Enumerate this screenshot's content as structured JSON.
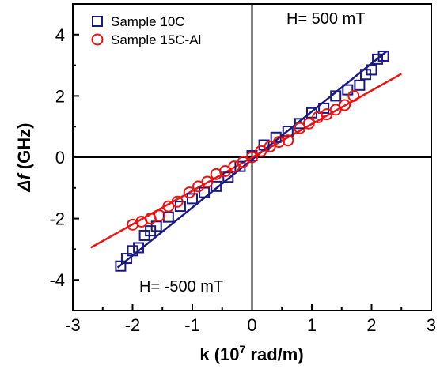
{
  "chart_data": {
    "type": "scatter",
    "xlabel_main": "k (10",
    "xlabel_sup": "7",
    "xlabel_end": " rad/m)",
    "ylabel_delta": "Δ",
    "ylabel_f": "f",
    "ylabel_unit": " (GHz)",
    "xlim": [
      -3,
      3
    ],
    "ylim": [
      -5,
      5
    ],
    "xticks": [
      -3,
      -2,
      -1,
      0,
      1,
      2,
      3
    ],
    "yticks": [
      -4,
      -2,
      0,
      2,
      4
    ],
    "xtick_labels": [
      "-3",
      "-2",
      "-1",
      "0",
      "1",
      "2",
      "3"
    ],
    "ytick_labels": [
      "-4",
      "-2",
      "0",
      "2",
      "4"
    ],
    "legend_position": "top-left",
    "annotations": {
      "top_right": "H= 500 mT",
      "bottom_left": "H= -500 mT"
    },
    "series": [
      {
        "name": "Sample 10C",
        "marker": "square",
        "color": "#1a1a80",
        "x": [
          -2.2,
          -2.1,
          -2.0,
          -1.9,
          -1.8,
          -1.7,
          -1.6,
          -1.4,
          -1.2,
          -1.0,
          -0.8,
          -0.6,
          -0.4,
          -0.2,
          0.0,
          0.2,
          0.4,
          0.6,
          0.8,
          1.0,
          1.2,
          1.4,
          1.6,
          1.8,
          1.9,
          2.0,
          2.1,
          2.2
        ],
        "y": [
          -3.55,
          -3.3,
          -3.05,
          -2.95,
          -2.55,
          -2.4,
          -2.25,
          -1.95,
          -1.6,
          -1.35,
          -1.15,
          -0.95,
          -0.65,
          -0.3,
          0.05,
          0.4,
          0.65,
          0.85,
          1.1,
          1.45,
          1.6,
          2.0,
          2.2,
          2.35,
          2.7,
          2.85,
          3.2,
          3.3
        ]
      },
      {
        "name": "Sample 15C-Al",
        "marker": "circle",
        "color": "#ee1111",
        "x": [
          -2.0,
          -1.85,
          -1.7,
          -1.55,
          -1.4,
          -1.25,
          -1.05,
          -0.9,
          -0.75,
          -0.6,
          -0.45,
          -0.3,
          -0.15,
          0.0,
          0.15,
          0.3,
          0.45,
          0.6,
          0.8,
          0.95,
          1.1,
          1.25,
          1.4,
          1.55,
          1.7
        ],
        "y": [
          -2.2,
          -2.1,
          -2.0,
          -1.9,
          -1.6,
          -1.45,
          -1.15,
          -0.95,
          -0.8,
          -0.55,
          -0.45,
          -0.3,
          -0.15,
          0.0,
          0.2,
          0.35,
          0.5,
          0.55,
          0.95,
          1.1,
          1.3,
          1.4,
          1.55,
          1.7,
          2.0
        ]
      }
    ],
    "fit_lines": [
      {
        "series": "Sample 10C",
        "color": "#1a1a80",
        "x": [
          -2.25,
          2.25
        ],
        "y": [
          -3.6,
          3.45
        ]
      },
      {
        "series": "Sample 15C-Al",
        "color": "#ee1111",
        "x": [
          -2.7,
          2.5
        ],
        "y": [
          -2.95,
          2.72
        ]
      }
    ]
  }
}
